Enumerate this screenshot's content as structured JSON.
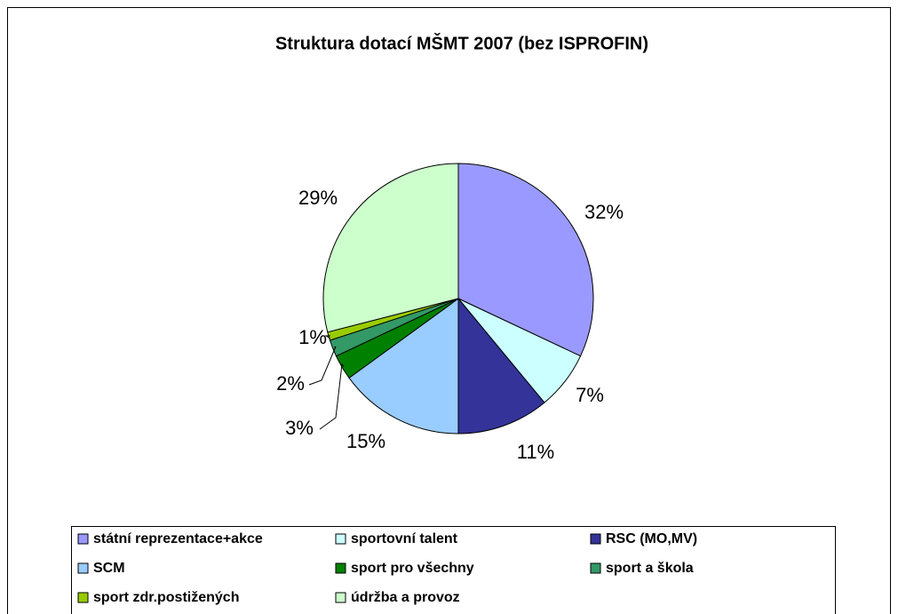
{
  "chart_data": {
    "type": "pie",
    "title": "Struktura dotací MŠMT 2007 (bez ISPROFIN)",
    "categories": [
      "státní reprezentace+akce",
      "sportovní talent",
      "RSC (MO,MV)",
      "SCM",
      "sport pro všechny",
      "sport a škola",
      "sport zdr.postižených",
      "údržba a provoz"
    ],
    "values": [
      32,
      7,
      11,
      15,
      3,
      2,
      1,
      29
    ],
    "value_labels": [
      "32%",
      "7%",
      "11%",
      "15%",
      "3%",
      "2%",
      "1%",
      "29%"
    ],
    "colors": [
      "#9999ff",
      "#ccffff",
      "#333399",
      "#99ccff",
      "#008000",
      "#339966",
      "#99cc00",
      "#ccffcc"
    ],
    "legend": "bottom"
  }
}
